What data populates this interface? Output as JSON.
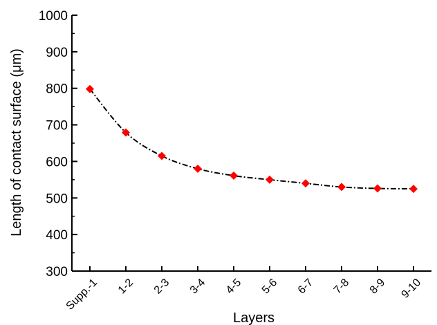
{
  "chart_data": {
    "type": "line",
    "categories": [
      "Supp.-1",
      "1-2",
      "2-3",
      "3-4",
      "4-5",
      "5-6",
      "6-7",
      "7-8",
      "8-9",
      "9-10"
    ],
    "series": [
      {
        "values": [
          798,
          679,
          615,
          580,
          561,
          550,
          540,
          530,
          526,
          525
        ],
        "color": "#ff0000",
        "line_color": "#000000",
        "line_style": "dash-dot",
        "marker": "diamond"
      }
    ],
    "xlabel": "Layers",
    "ylabel": "Length of contact surface (μm)",
    "ylim": [
      300,
      1000
    ],
    "yticks": [
      300,
      400,
      500,
      600,
      700,
      800,
      900,
      1000
    ],
    "grid": false
  }
}
